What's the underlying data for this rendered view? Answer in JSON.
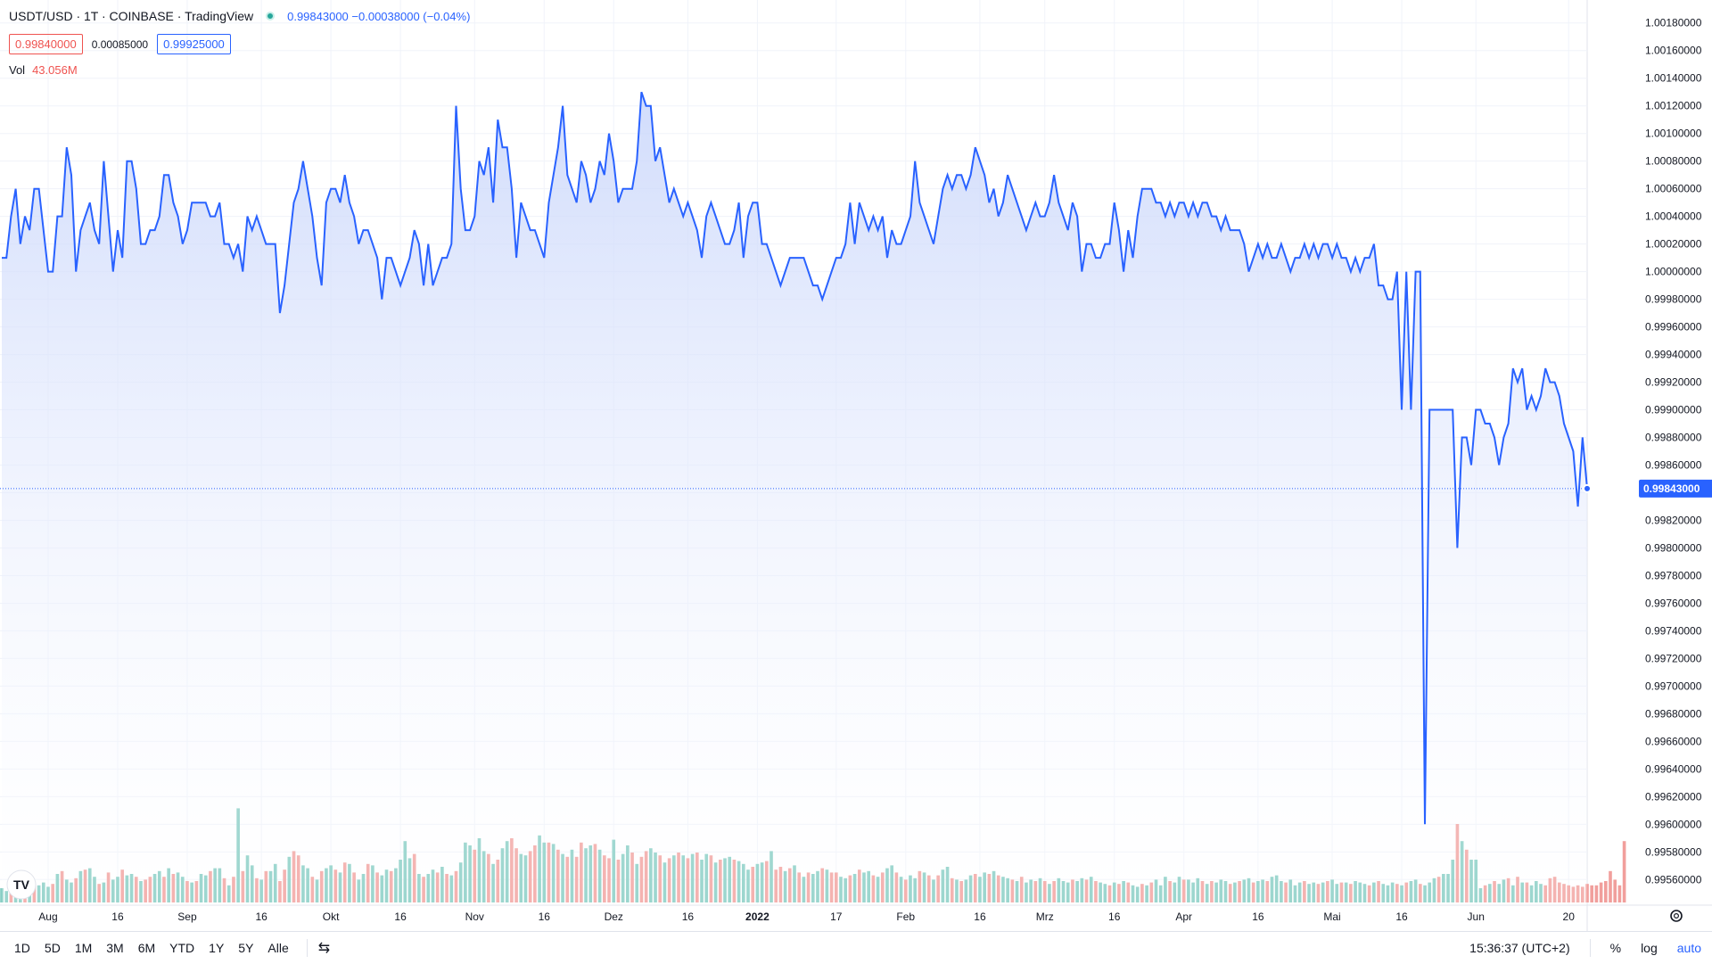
{
  "header": {
    "symbol": "USDT/USD · 1T · COINBASE · TradingView",
    "price_change": "0.99843000 −0.00038000 (−0.04%)",
    "bid": "0.99840000",
    "spread": "0.00085000",
    "ask": "0.99925000",
    "vol_label": "Vol",
    "vol_value": "43.056M"
  },
  "colors": {
    "line": "#2962ff",
    "area_top": "#c9d6fb",
    "vol_up": "#83ccc2",
    "vol_down": "#f19f9c",
    "price_label_bg": "#2962ff"
  },
  "chart_data": {
    "type": "area",
    "title": "USDT/USD",
    "ylim": [
      0.99546,
      1.00185
    ],
    "current_price": 0.99843,
    "current_price_label": "0.99843000",
    "y_ticks": [
      "1.00180000",
      "1.00160000",
      "1.00140000",
      "1.00120000",
      "1.00100000",
      "1.00080000",
      "1.00060000",
      "1.00040000",
      "1.00020000",
      "1.00000000",
      "0.99980000",
      "0.99960000",
      "0.99940000",
      "0.99920000",
      "0.99900000",
      "0.99880000",
      "0.99860000",
      "0.99840000",
      "0.99820000",
      "0.99800000",
      "0.99780000",
      "0.99760000",
      "0.99740000",
      "0.99720000",
      "0.99700000",
      "0.99680000",
      "0.99660000",
      "0.99640000",
      "0.99620000",
      "0.99600000",
      "0.99580000",
      "0.99560000"
    ],
    "x_ticks": [
      "Aug",
      "16",
      "Sep",
      "16",
      "Okt",
      "16",
      "Nov",
      "16",
      "Dez",
      "16",
      "2022",
      "17",
      "Feb",
      "16",
      "Mrz",
      "16",
      "Apr",
      "16",
      "Mai",
      "16",
      "Jun",
      "20"
    ],
    "x_tick_index": [
      10,
      25,
      40,
      56,
      71,
      86,
      102,
      117,
      132,
      148,
      163,
      180,
      195,
      211,
      225,
      240,
      255,
      271,
      287,
      302,
      318,
      338
    ],
    "series": [
      {
        "values": [
          1.0001,
          1.0001,
          1.0004,
          1.0006,
          1.0002,
          1.0004,
          1.0003,
          1.0006,
          1.0006,
          1.0003,
          1.0,
          1.0,
          1.0004,
          1.0004,
          1.0009,
          1.0007,
          1.0,
          1.0003,
          1.0004,
          1.0005,
          1.0003,
          1.0002,
          1.0008,
          1.0004,
          1.0,
          1.0003,
          1.0001,
          1.0008,
          1.0008,
          1.0006,
          1.0002,
          1.0002,
          1.0003,
          1.0003,
          1.0004,
          1.0007,
          1.0007,
          1.0005,
          1.0004,
          1.0002,
          1.0003,
          1.0005,
          1.0005,
          1.0005,
          1.0005,
          1.0004,
          1.0004,
          1.0005,
          1.0002,
          1.0002,
          1.0001,
          1.0002,
          1.0,
          1.0004,
          1.0003,
          1.0004,
          1.0003,
          1.0002,
          1.0002,
          1.0002,
          0.9997,
          0.9999,
          1.0002,
          1.0005,
          1.0006,
          1.0008,
          1.0006,
          1.0004,
          1.0001,
          0.9999,
          1.0005,
          1.0006,
          1.0006,
          1.0005,
          1.0007,
          1.0005,
          1.0004,
          1.0002,
          1.0003,
          1.0003,
          1.0002,
          1.0001,
          0.9998,
          1.0001,
          1.0001,
          1.0,
          0.9999,
          1.0,
          1.0001,
          1.0003,
          1.0002,
          0.9999,
          1.0002,
          0.9999,
          1.0,
          1.0001,
          1.0001,
          1.0002,
          1.0012,
          1.0006,
          1.0003,
          1.0003,
          1.0004,
          1.0008,
          1.0007,
          1.0009,
          1.0005,
          1.0011,
          1.0009,
          1.0009,
          1.0006,
          1.0001,
          1.0005,
          1.0004,
          1.0003,
          1.0003,
          1.0002,
          1.0001,
          1.0005,
          1.0007,
          1.0009,
          1.0012,
          1.0007,
          1.0006,
          1.0005,
          1.0008,
          1.0007,
          1.0005,
          1.0006,
          1.0008,
          1.0007,
          1.001,
          1.0008,
          1.0005,
          1.0006,
          1.0006,
          1.0006,
          1.0008,
          1.0013,
          1.0012,
          1.0012,
          1.0008,
          1.0009,
          1.0007,
          1.0005,
          1.0006,
          1.0005,
          1.0004,
          1.0005,
          1.0004,
          1.0003,
          1.0001,
          1.0004,
          1.0005,
          1.0004,
          1.0003,
          1.0002,
          1.0002,
          1.0003,
          1.0005,
          1.0001,
          1.0004,
          1.0005,
          1.0005,
          1.0002,
          1.0002,
          1.0001,
          1.0,
          0.9999,
          1.0,
          1.0001,
          1.0001,
          1.0001,
          1.0001,
          1.0,
          0.9999,
          0.9999,
          0.9998,
          0.9999,
          1.0,
          1.0001,
          1.0001,
          1.0002,
          1.0005,
          1.0002,
          1.0005,
          1.0004,
          1.0003,
          1.0004,
          1.0003,
          1.0004,
          1.0001,
          1.0003,
          1.0002,
          1.0002,
          1.0003,
          1.0004,
          1.0008,
          1.0005,
          1.0004,
          1.0003,
          1.0002,
          1.0004,
          1.0006,
          1.0007,
          1.0006,
          1.0007,
          1.0007,
          1.0006,
          1.0007,
          1.0009,
          1.0008,
          1.0007,
          1.0005,
          1.0006,
          1.0004,
          1.0005,
          1.0007,
          1.0006,
          1.0005,
          1.0004,
          1.0003,
          1.0004,
          1.0005,
          1.0004,
          1.0004,
          1.0005,
          1.0007,
          1.0005,
          1.0004,
          1.0003,
          1.0005,
          1.0004,
          1.0,
          1.0002,
          1.0002,
          1.0001,
          1.0001,
          1.0002,
          1.0002,
          1.0005,
          1.0003,
          1.0,
          1.0003,
          1.0001,
          1.0004,
          1.0006,
          1.0006,
          1.0006,
          1.0005,
          1.0005,
          1.0004,
          1.0005,
          1.0004,
          1.0005,
          1.0005,
          1.0004,
          1.0005,
          1.0004,
          1.0005,
          1.0005,
          1.0004,
          1.0004,
          1.0003,
          1.0004,
          1.0003,
          1.0003,
          1.0003,
          1.0002,
          1.0,
          1.0001,
          1.0002,
          1.0001,
          1.0002,
          1.0001,
          1.0001,
          1.0002,
          1.0001,
          1.0,
          1.0001,
          1.0001,
          1.0002,
          1.0001,
          1.0002,
          1.0001,
          1.0002,
          1.0002,
          1.0001,
          1.0002,
          1.0001,
          1.0001,
          1.0,
          1.0001,
          1.0,
          1.0001,
          1.0001,
          1.0002,
          0.9999,
          0.9999,
          0.9998,
          0.9998,
          1.0,
          0.999,
          1.0,
          0.999,
          1.0,
          1.0,
          0.996,
          0.999,
          0.999,
          0.999,
          0.999,
          0.999,
          0.999,
          0.998,
          0.9988,
          0.9988,
          0.9986,
          0.999,
          0.999,
          0.9989,
          0.9989,
          0.9988,
          0.9986,
          0.9988,
          0.9989,
          0.9993,
          0.9992,
          0.9993,
          0.999,
          0.9991,
          0.999,
          0.9991,
          0.9993,
          0.9992,
          0.9992,
          0.9991,
          0.9989,
          0.9988,
          0.9987,
          0.9983,
          0.9988,
          0.99843
        ]
      },
      {
        "name": "Vol",
        "values": [
          0.1,
          0.08,
          0.1,
          0.12,
          0.13,
          0.1,
          0.11,
          0.13,
          0.12,
          0.14,
          0.11,
          0.13,
          0.2,
          0.22,
          0.16,
          0.14,
          0.17,
          0.22,
          0.23,
          0.24,
          0.18,
          0.13,
          0.14,
          0.21,
          0.16,
          0.18,
          0.23,
          0.19,
          0.2,
          0.18,
          0.15,
          0.16,
          0.18,
          0.2,
          0.22,
          0.18,
          0.24,
          0.2,
          0.21,
          0.18,
          0.15,
          0.14,
          0.15,
          0.2,
          0.19,
          0.22,
          0.24,
          0.24,
          0.17,
          0.12,
          0.18,
          0.66,
          0.22,
          0.33,
          0.26,
          0.17,
          0.16,
          0.22,
          0.22,
          0.27,
          0.15,
          0.23,
          0.32,
          0.36,
          0.33,
          0.26,
          0.24,
          0.18,
          0.16,
          0.22,
          0.24,
          0.26,
          0.23,
          0.21,
          0.28,
          0.27,
          0.21,
          0.16,
          0.2,
          0.27,
          0.26,
          0.21,
          0.19,
          0.23,
          0.22,
          0.24,
          0.3,
          0.43,
          0.31,
          0.34,
          0.2,
          0.18,
          0.2,
          0.23,
          0.21,
          0.25,
          0.2,
          0.19,
          0.22,
          0.28,
          0.42,
          0.4,
          0.37,
          0.45,
          0.36,
          0.34,
          0.27,
          0.3,
          0.38,
          0.43,
          0.45,
          0.38,
          0.34,
          0.33,
          0.36,
          0.4,
          0.47,
          0.42,
          0.42,
          0.41,
          0.37,
          0.34,
          0.32,
          0.37,
          0.32,
          0.42,
          0.38,
          0.4,
          0.41,
          0.37,
          0.33,
          0.31,
          0.44,
          0.3,
          0.34,
          0.4,
          0.35,
          0.27,
          0.32,
          0.36,
          0.38,
          0.35,
          0.33,
          0.28,
          0.31,
          0.33,
          0.35,
          0.33,
          0.31,
          0.34,
          0.35,
          0.3,
          0.34,
          0.33,
          0.28,
          0.3,
          0.31,
          0.32,
          0.3,
          0.29,
          0.27,
          0.23,
          0.25,
          0.27,
          0.28,
          0.29,
          0.36,
          0.23,
          0.25,
          0.22,
          0.24,
          0.26,
          0.21,
          0.18,
          0.21,
          0.2,
          0.22,
          0.24,
          0.23,
          0.21,
          0.21,
          0.18,
          0.17,
          0.19,
          0.2,
          0.23,
          0.21,
          0.22,
          0.19,
          0.18,
          0.21,
          0.24,
          0.26,
          0.21,
          0.18,
          0.16,
          0.19,
          0.17,
          0.22,
          0.21,
          0.19,
          0.16,
          0.19,
          0.23,
          0.25,
          0.17,
          0.16,
          0.15,
          0.16,
          0.19,
          0.2,
          0.18,
          0.21,
          0.2,
          0.22,
          0.19,
          0.18,
          0.17,
          0.16,
          0.15,
          0.18,
          0.14,
          0.16,
          0.15,
          0.17,
          0.15,
          0.13,
          0.15,
          0.17,
          0.15,
          0.14,
          0.16,
          0.15,
          0.17,
          0.16,
          0.18,
          0.15,
          0.14,
          0.13,
          0.12,
          0.14,
          0.13,
          0.15,
          0.14,
          0.12,
          0.11,
          0.13,
          0.12,
          0.14,
          0.16,
          0.12,
          0.18,
          0.15,
          0.14,
          0.18,
          0.16,
          0.16,
          0.14,
          0.17,
          0.15,
          0.13,
          0.15,
          0.14,
          0.16,
          0.15,
          0.13,
          0.14,
          0.15,
          0.16,
          0.17,
          0.14,
          0.15,
          0.16,
          0.15,
          0.18,
          0.19,
          0.15,
          0.14,
          0.16,
          0.12,
          0.14,
          0.15,
          0.13,
          0.14,
          0.13,
          0.14,
          0.15,
          0.16,
          0.13,
          0.14,
          0.14,
          0.13,
          0.15,
          0.14,
          0.13,
          0.12,
          0.14,
          0.15,
          0.13,
          0.12,
          0.14,
          0.13,
          0.12,
          0.14,
          0.15,
          0.16,
          0.13,
          0.12,
          0.14,
          0.17,
          0.18,
          0.2,
          0.2,
          0.3,
          0.55,
          0.43,
          0.37,
          0.3,
          0.3,
          0.1,
          0.12,
          0.13,
          0.15,
          0.13,
          0.16,
          0.17,
          0.12,
          0.18,
          0.14,
          0.14,
          0.12,
          0.15,
          0.13,
          0.12,
          0.17,
          0.18,
          0.14,
          0.13,
          0.12,
          0.11,
          0.12,
          0.11,
          0.13,
          0.12,
          0.12,
          0.14,
          0.15,
          0.22,
          0.16,
          0.12,
          0.43
        ],
        "up": [
          1,
          1,
          0,
          1,
          1,
          0,
          1,
          0,
          1,
          1,
          1,
          0,
          1,
          0,
          1,
          1,
          0,
          1,
          0,
          1,
          1,
          0,
          1,
          0,
          1,
          1,
          0,
          1,
          1,
          0,
          1,
          0,
          0,
          1,
          1,
          0,
          1,
          0,
          1,
          1,
          0,
          1,
          0,
          1,
          1,
          0,
          1,
          1,
          0,
          1,
          0,
          1,
          0,
          1,
          1,
          0,
          1,
          0,
          1,
          1,
          0,
          0,
          1,
          0,
          0,
          1,
          1,
          0,
          1,
          0,
          1,
          1,
          0,
          1,
          0,
          1,
          0,
          1,
          1,
          0,
          1,
          0,
          1,
          1,
          0,
          1,
          1,
          1,
          1,
          0,
          1,
          0,
          1,
          1,
          0,
          1,
          0,
          1,
          0,
          1,
          1,
          1,
          0,
          1,
          1,
          0,
          1,
          0,
          1,
          1,
          0,
          0,
          1,
          1,
          0,
          0,
          1,
          1,
          0,
          1,
          0,
          1,
          0,
          1,
          0,
          0,
          1,
          1,
          0,
          1,
          0,
          0,
          1,
          0,
          1,
          1,
          0,
          1,
          0,
          0,
          1,
          1,
          0,
          1,
          0,
          1,
          0,
          1,
          0,
          1,
          0,
          1,
          1,
          0,
          1,
          0,
          1,
          1,
          0,
          1,
          1,
          1,
          0,
          1,
          1,
          0,
          1,
          0,
          0,
          1,
          0,
          1,
          0,
          1,
          0,
          1,
          1,
          0,
          1,
          0,
          0,
          1,
          1,
          0,
          1,
          0,
          1,
          1,
          0,
          1,
          0,
          1,
          1,
          0,
          1,
          0,
          1,
          1,
          0,
          1,
          0,
          1,
          0,
          1,
          1,
          0,
          1,
          0,
          1,
          1,
          0,
          1,
          1,
          0,
          1,
          0,
          1,
          1,
          0,
          1,
          0,
          1,
          1,
          0,
          1,
          0,
          1,
          0,
          1,
          1,
          1,
          0,
          1,
          1,
          0,
          1,
          0,
          1,
          1,
          0,
          1,
          0,
          1,
          0,
          1,
          1,
          0,
          1,
          0,
          1,
          1,
          1,
          0,
          1,
          1,
          0,
          1,
          1,
          1,
          0,
          1,
          0,
          1,
          1,
          1,
          0,
          1,
          0,
          1,
          1,
          0,
          1,
          1,
          0,
          1,
          1,
          1,
          0,
          1,
          1,
          1,
          0,
          1,
          1,
          0,
          1,
          0,
          1,
          1,
          0,
          1,
          0,
          1,
          1,
          1,
          0,
          1,
          0,
          1,
          1,
          1,
          0,
          1,
          0,
          1,
          1,
          0,
          1,
          1,
          1,
          0,
          1,
          1,
          1,
          0,
          1,
          0,
          1,
          1,
          1,
          0,
          1,
          0,
          1,
          1,
          0,
          1,
          0,
          1,
          0,
          1,
          1,
          1,
          0,
          0,
          0
        ]
      }
    ]
  },
  "bottom": {
    "ranges": [
      "1D",
      "5D",
      "1M",
      "3M",
      "6M",
      "YTD",
      "1Y",
      "5Y",
      "Alle"
    ],
    "time": "15:36:37 (UTC+2)",
    "percent": "%",
    "log": "log",
    "auto": "auto"
  },
  "logo_text": "TV"
}
